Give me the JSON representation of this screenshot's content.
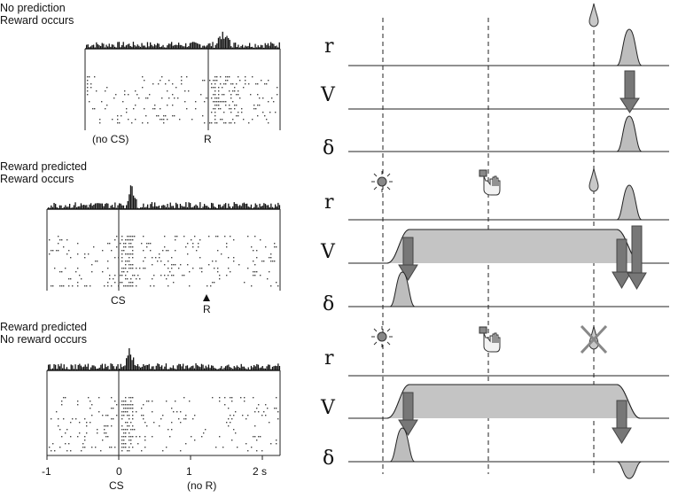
{
  "left_panels": [
    {
      "title_line1": "No prediction",
      "title_line2": "Reward occurs",
      "marker1": "(no CS)",
      "marker2": "R"
    },
    {
      "title_line1": "Reward predicted",
      "title_line2": "Reward occurs",
      "marker1": "CS",
      "marker2": "R"
    },
    {
      "title_line1": "Reward predicted",
      "title_line2": "No reward occurs",
      "marker1": "CS",
      "marker2": "(no R)"
    }
  ],
  "time_axis": {
    "ticks": [
      "-1",
      "0",
      "1",
      "2 s"
    ]
  },
  "signal_labels": {
    "r": "r",
    "V": "V",
    "delta": "δ"
  },
  "icons": [
    "light-stimulus-icon",
    "lever-press-hand-icon",
    "juice-drop-icon",
    "crossed-out-drop-icon"
  ]
}
